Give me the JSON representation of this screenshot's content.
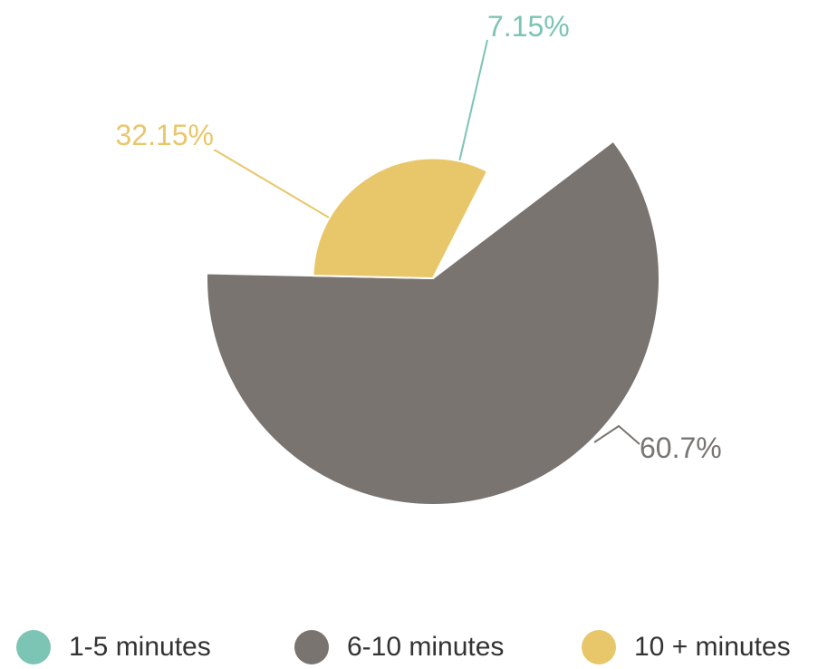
{
  "chart_data": {
    "type": "pie",
    "title": "",
    "slices": [
      {
        "name": "1-5 minutes",
        "value": 7.15,
        "label": "7.15%",
        "color": "#7cc4b4",
        "radius_scale": 0.0
      },
      {
        "name": "6-10 minutes",
        "value": 60.7,
        "label": "60.7%",
        "color": "#7a7470",
        "radius_scale": 1.0
      },
      {
        "name": "10 + minutes",
        "value": 32.15,
        "label": "32.15%",
        "color": "#e8c76a",
        "radius_scale": 0.53
      }
    ],
    "start_angle_deg": 27,
    "direction": "clockwise",
    "legend_position": "bottom"
  }
}
